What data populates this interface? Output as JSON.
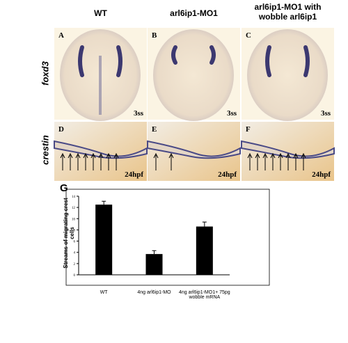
{
  "columns": [
    "WT",
    "arl6ip1-MO1",
    "arl6ip1-MO1 with wobble arl6ip1"
  ],
  "rows": [
    "foxd3",
    "crestin"
  ],
  "panels": [
    {
      "letter": "A",
      "stage": "3ss"
    },
    {
      "letter": "B",
      "stage": "3ss"
    },
    {
      "letter": "C",
      "stage": "3ss"
    },
    {
      "letter": "D",
      "stage": "24hpf"
    },
    {
      "letter": "E",
      "stage": "24hpf"
    },
    {
      "letter": "F",
      "stage": "24hpf"
    }
  ],
  "chart_data": {
    "type": "bar",
    "panel_label": "G",
    "y_label": "Streams of migrating crest cells",
    "categories": [
      "WT",
      "4ng arl6ip1-MO",
      "4ng arl6ip1-MO1+ 75pg wobble mRNA"
    ],
    "values": [
      12.5,
      3.7,
      8.6
    ],
    "errors": [
      0.6,
      0.6,
      0.8
    ],
    "color": "#000000",
    "ylim": [
      0,
      14
    ],
    "yticks": [
      0,
      2,
      4,
      6,
      8,
      10,
      12,
      14
    ]
  }
}
